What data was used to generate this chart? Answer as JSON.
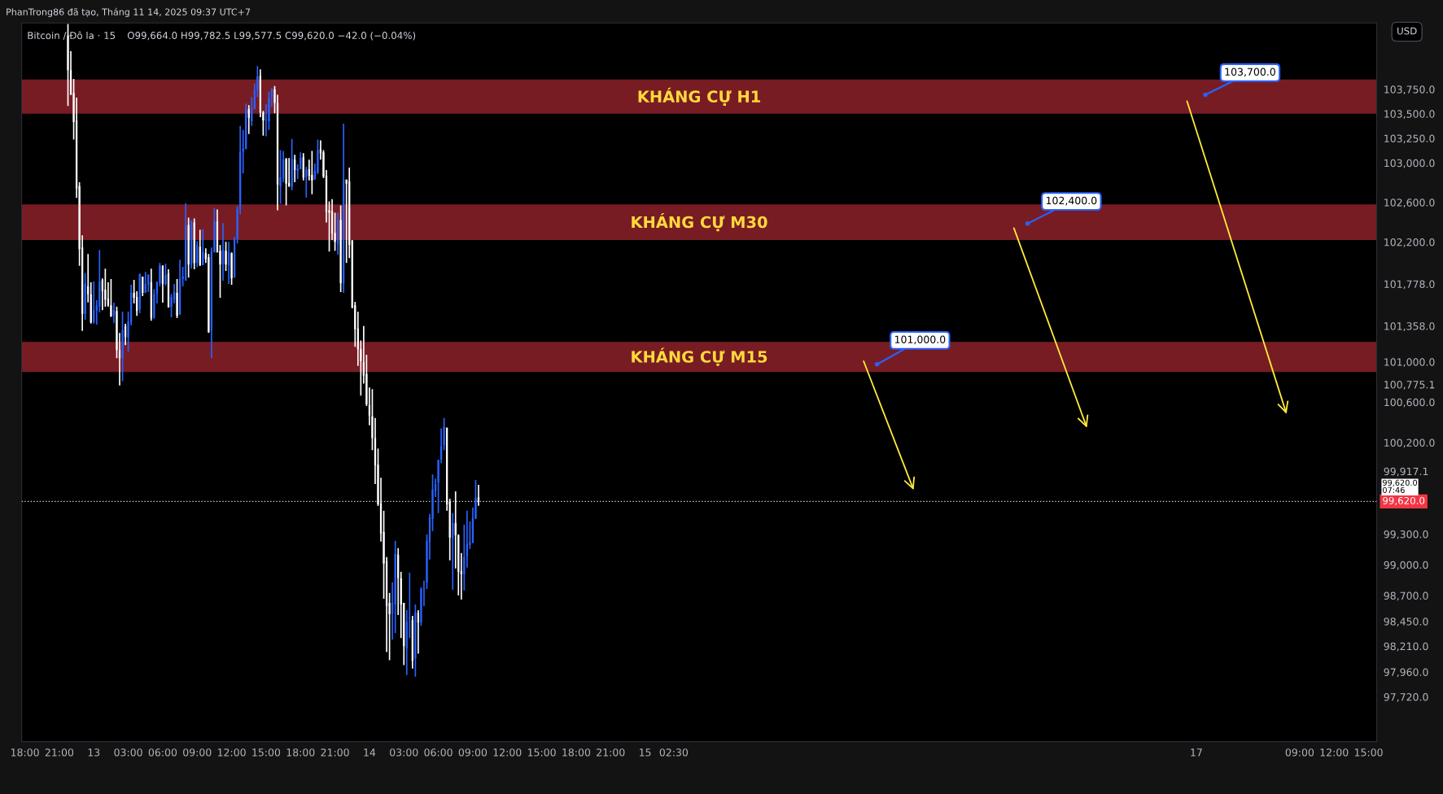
{
  "chart_data": {
    "type": "candlestick",
    "title": "Bitcoin / Đô la · 15",
    "subtitle": "O99,664.0 H99,782.5 L99,577.5 C99,620.0 −42.0 (−0.04%)",
    "annotations": [
      "PhanTrong86 đã tạo, Tháng 11 14, 2025 09:37 UTC+7",
      "USD",
      "99,620.0\n07:46",
      "101,000.0",
      "102,400.0",
      "103,700.0"
    ],
    "bands": [
      {
        "axis": "y",
        "from": 103500,
        "to": 103850,
        "label": "KHÁNG CỰ H1",
        "color": "#781c24"
      },
      {
        "axis": "y",
        "from": 102220,
        "to": 102580,
        "label": "KHÁNG CỰ M30",
        "color": "#781c24"
      },
      {
        "axis": "y",
        "from": 100900,
        "to": 101200,
        "label": "KHÁNG CỰ M15",
        "color": "#781c24"
      }
    ],
    "ref_lines": [
      {
        "axis": "y",
        "value": 99620,
        "line_style": "dotted",
        "label": "99,620.0",
        "color": "#d1d4dc"
      }
    ],
    "log": true,
    "grid": false,
    "xlim": [
      "2025-11-12T17:43",
      "2025-11-17T15:42"
    ],
    "ylim": [
      97290,
      104430
    ],
    "xticks": [
      {
        "value": "2025-11-12T18:00",
        "label": "18:00"
      },
      {
        "value": "2025-11-12T21:00",
        "label": "21:00"
      },
      {
        "value": "2025-11-13",
        "label": "13"
      },
      {
        "value": "2025-11-13T03:00",
        "label": "03:00"
      },
      {
        "value": "2025-11-13T06:00",
        "label": "06:00"
      },
      {
        "value": "2025-11-13T09:00",
        "label": "09:00"
      },
      {
        "value": "2025-11-13T12:00",
        "label": "12:00"
      },
      {
        "value": "2025-11-13T15:00",
        "label": "15:00"
      },
      {
        "value": "2025-11-13T18:00",
        "label": "18:00"
      },
      {
        "value": "2025-11-13T21:00",
        "label": "21:00"
      },
      {
        "value": "2025-11-14",
        "label": "14"
      },
      {
        "value": "2025-11-14T03:00",
        "label": "03:00"
      },
      {
        "value": "2025-11-14T06:00",
        "label": "06:00"
      },
      {
        "value": "2025-11-14T09:00",
        "label": "09:00"
      },
      {
        "value": "2025-11-14T12:00",
        "label": "12:00"
      },
      {
        "value": "2025-11-14T15:00",
        "label": "15:00"
      },
      {
        "value": "2025-11-14T18:00",
        "label": "18:00"
      },
      {
        "value": "2025-11-14T21:00",
        "label": "21:00"
      },
      {
        "value": "2025-11-15",
        "label": "15"
      },
      {
        "value": "2025-11-15T02:30",
        "label": "02:30"
      },
      {
        "value": "2025-11-17",
        "label": "17"
      },
      {
        "value": "2025-11-17T09:00",
        "label": "09:00"
      },
      {
        "value": "2025-11-17T12:00",
        "label": "12:00"
      },
      {
        "value": "2025-11-17T15:00",
        "label": "15:00"
      }
    ],
    "yticks": [
      {
        "value": 101778,
        "label": "101,778.0"
      },
      {
        "value": 101358,
        "label": "101,358.0"
      },
      {
        "value": 100775.1,
        "label": "100,775.1"
      },
      {
        "value": 99917.1,
        "label": "99,917.1"
      },
      {
        "value": 97720,
        "label": "97,720.0"
      },
      {
        "value": 97960,
        "label": "97,960.0"
      },
      {
        "value": 98210,
        "label": "98,210.0"
      },
      {
        "value": 98450,
        "label": "98,450.0"
      },
      {
        "value": 98700,
        "label": "98,700.0"
      },
      {
        "value": 99000,
        "label": "99,000.0"
      },
      {
        "value": 99300,
        "label": "99,300.0"
      },
      {
        "value": 100200,
        "label": "100,200.0"
      },
      {
        "value": 100600,
        "label": "100,600.0"
      },
      {
        "value": 101000,
        "label": "101,000.0"
      },
      {
        "value": 102200,
        "label": "102,200.0"
      },
      {
        "value": 102600,
        "label": "102,600.0"
      },
      {
        "value": 103000,
        "label": "103,000.0"
      },
      {
        "value": 103250,
        "label": "103,250.0"
      },
      {
        "value": 103500,
        "label": "103,500.0"
      },
      {
        "value": 103750,
        "label": "103,750.0"
      }
    ],
    "x": [
      "2025-11-12T21:45",
      "2025-11-12T22:00",
      "2025-11-12T22:15",
      "2025-11-12T22:30",
      "2025-11-12T22:45",
      "2025-11-12T23:00",
      "2025-11-12T23:15",
      "2025-11-12T23:30",
      "2025-11-12T23:45",
      "2025-11-13T00:00",
      "2025-11-13T00:15",
      "2025-11-13T00:30",
      "2025-11-13T00:45",
      "2025-11-13T01:00",
      "2025-11-13T01:15",
      "2025-11-13T01:30",
      "2025-11-13T01:45",
      "2025-11-13T02:00",
      "2025-11-13T02:15",
      "2025-11-13T02:30",
      "2025-11-13T02:45",
      "2025-11-13T03:00",
      "2025-11-13T03:15",
      "2025-11-13T03:30",
      "2025-11-13T03:45",
      "2025-11-13T04:00",
      "2025-11-13T04:15",
      "2025-11-13T04:30",
      "2025-11-13T04:45",
      "2025-11-13T05:00",
      "2025-11-13T05:15",
      "2025-11-13T05:30",
      "2025-11-13T05:45",
      "2025-11-13T06:00",
      "2025-11-13T06:15",
      "2025-11-13T06:30",
      "2025-11-13T06:45",
      "2025-11-13T07:00",
      "2025-11-13T07:15",
      "2025-11-13T07:30",
      "2025-11-13T07:45",
      "2025-11-13T08:00",
      "2025-11-13T08:15",
      "2025-11-13T08:30",
      "2025-11-13T08:45",
      "2025-11-13T09:00",
      "2025-11-13T09:15",
      "2025-11-13T09:30",
      "2025-11-13T09:45",
      "2025-11-13T10:00",
      "2025-11-13T10:15",
      "2025-11-13T10:30",
      "2025-11-13T10:45",
      "2025-11-13T11:00",
      "2025-11-13T11:15",
      "2025-11-13T11:30",
      "2025-11-13T11:45",
      "2025-11-13T12:00",
      "2025-11-13T12:15",
      "2025-11-13T12:30",
      "2025-11-13T12:45",
      "2025-11-13T13:00",
      "2025-11-13T13:15",
      "2025-11-13T13:30",
      "2025-11-13T13:45",
      "2025-11-13T14:00",
      "2025-11-13T14:15",
      "2025-11-13T14:30",
      "2025-11-13T14:45",
      "2025-11-13T15:00",
      "2025-11-13T15:15",
      "2025-11-13T15:30",
      "2025-11-13T15:45",
      "2025-11-13T16:00",
      "2025-11-13T16:15",
      "2025-11-13T16:30",
      "2025-11-13T16:45",
      "2025-11-13T17:00",
      "2025-11-13T17:15",
      "2025-11-13T17:30",
      "2025-11-13T17:45",
      "2025-11-13T18:00",
      "2025-11-13T18:15",
      "2025-11-13T18:30",
      "2025-11-13T18:45",
      "2025-11-13T19:00",
      "2025-11-13T19:15",
      "2025-11-13T19:30",
      "2025-11-13T19:45",
      "2025-11-13T20:00",
      "2025-11-13T20:15",
      "2025-11-13T20:30",
      "2025-11-13T20:45",
      "2025-11-13T21:00",
      "2025-11-13T21:15",
      "2025-11-13T21:30",
      "2025-11-13T21:45",
      "2025-11-13T22:00",
      "2025-11-13T22:15",
      "2025-11-13T22:30",
      "2025-11-13T22:45",
      "2025-11-13T23:00",
      "2025-11-13T23:15",
      "2025-11-13T23:30",
      "2025-11-13T23:45",
      "2025-11-14T00:00",
      "2025-11-14T00:15",
      "2025-11-14T00:30",
      "2025-11-14T00:45",
      "2025-11-14T01:00",
      "2025-11-14T01:15",
      "2025-11-14T01:30",
      "2025-11-14T01:45",
      "2025-11-14T02:00",
      "2025-11-14T02:15",
      "2025-11-14T02:30",
      "2025-11-14T02:45",
      "2025-11-14T03:00",
      "2025-11-14T03:15",
      "2025-11-14T03:30",
      "2025-11-14T03:45",
      "2025-11-14T04:00",
      "2025-11-14T04:15",
      "2025-11-14T04:30",
      "2025-11-14T04:45",
      "2025-11-14T05:00",
      "2025-11-14T05:15",
      "2025-11-14T05:30",
      "2025-11-14T05:45",
      "2025-11-14T06:00",
      "2025-11-14T06:15",
      "2025-11-14T06:30",
      "2025-11-14T06:45",
      "2025-11-14T07:00",
      "2025-11-14T07:15",
      "2025-11-14T07:30",
      "2025-11-14T07:45",
      "2025-11-14T08:00",
      "2025-11-14T08:15",
      "2025-11-14T08:30",
      "2025-11-14T08:45",
      "2025-11-14T09:00",
      "2025-11-14T09:15",
      "2025-11-14T09:30"
    ],
    "ohlc": [
      [
        104300,
        104420,
        103580,
        103946
      ],
      [
        103946,
        104142,
        103694,
        103694
      ],
      [
        103713,
        103857,
        103237,
        103417
      ],
      [
        103433,
        103666,
        102645,
        102740
      ],
      [
        102765,
        102805,
        101960,
        102129
      ],
      [
        102145,
        102267,
        101308,
        101479
      ],
      [
        101479,
        101887,
        101420,
        101778
      ],
      [
        101754,
        102080,
        101594,
        101675
      ],
      [
        101672,
        101795,
        101381,
        101395
      ],
      [
        101395,
        101803,
        101381,
        101517
      ],
      [
        101512,
        101615,
        101371,
        101566
      ],
      [
        101553,
        102121,
        101493,
        101803
      ],
      [
        101819,
        101835,
        101517,
        101705
      ],
      [
        101721,
        101933,
        101550,
        101623
      ],
      [
        101632,
        101795,
        101550,
        101566
      ],
      [
        101566,
        101827,
        101452,
        101452
      ],
      [
        101460,
        101591,
        101387,
        101517
      ],
      [
        101509,
        101550,
        101037,
        101118
      ],
      [
        101118,
        101289,
        100767,
        101037
      ],
      [
        101037,
        101501,
        100808,
        101314
      ],
      [
        101354,
        101379,
        101167,
        101248
      ],
      [
        101240,
        101501,
        101102,
        101403
      ],
      [
        101395,
        101770,
        101363,
        101689
      ],
      [
        101689,
        101819,
        101583,
        101640
      ],
      [
        101648,
        101705,
        101460,
        101509
      ],
      [
        101525,
        101884,
        101485,
        101876
      ],
      [
        101852,
        101852,
        101656,
        101689
      ],
      [
        101689,
        101900,
        101689,
        101778
      ],
      [
        101770,
        101876,
        101697,
        101868
      ],
      [
        101795,
        101933,
        101411,
        101436
      ],
      [
        101444,
        101729,
        101428,
        101680
      ],
      [
        101680,
        101803,
        101583,
        101795
      ],
      [
        101787,
        101990,
        101754,
        101966
      ],
      [
        101958,
        101966,
        101591,
        101778
      ],
      [
        101778,
        101982,
        101762,
        101868
      ],
      [
        101884,
        101925,
        101542,
        101542
      ],
      [
        101550,
        101680,
        101444,
        101648
      ],
      [
        101623,
        101778,
        101583,
        101697
      ],
      [
        101689,
        101827,
        101436,
        101460
      ],
      [
        101477,
        102023,
        101468,
        101827
      ],
      [
        101827,
        101950,
        101754,
        101852
      ],
      [
        101811,
        102593,
        101811,
        102365
      ],
      [
        102373,
        102447,
        101843,
        101974
      ],
      [
        101974,
        102422,
        101933,
        102406
      ],
      [
        102398,
        102438,
        101925,
        101990
      ],
      [
        101990,
        102210,
        101949,
        102170
      ],
      [
        102153,
        102324,
        101958,
        101966
      ],
      [
        101966,
        102332,
        101966,
        102104
      ],
      [
        102088,
        102137,
        101990,
        102031
      ],
      [
        102047,
        102080,
        101289,
        101297
      ],
      [
        101314,
        102145,
        101037,
        102104
      ],
      [
        102096,
        102544,
        102096,
        102414
      ],
      [
        102406,
        102528,
        102096,
        102096
      ],
      [
        102112,
        102170,
        101640,
        101974
      ],
      [
        101982,
        102390,
        101811,
        102121
      ],
      [
        102112,
        102202,
        101909,
        101974
      ],
      [
        101966,
        102202,
        101778,
        102096
      ],
      [
        102088,
        102096,
        101770,
        101835
      ],
      [
        101843,
        102251,
        101843,
        102235
      ],
      [
        102235,
        102561,
        102186,
        102536
      ],
      [
        102536,
        103376,
        102479,
        103115
      ],
      [
        103115,
        103335,
        102895,
        103148
      ],
      [
        103140,
        103604,
        103140,
        103539
      ],
      [
        103547,
        103588,
        103294,
        103457
      ],
      [
        103425,
        103669,
        103376,
        103563
      ],
      [
        103547,
        103808,
        103547,
        103743
      ],
      [
        103743,
        103987,
        103669,
        103881
      ],
      [
        103889,
        103955,
        103465,
        103514
      ],
      [
        103514,
        103531,
        103278,
        103433
      ],
      [
        103433,
        103596,
        103270,
        103441
      ],
      [
        103425,
        103726,
        103335,
        103661
      ],
      [
        103669,
        103759,
        103571,
        103759
      ],
      [
        103751,
        103783,
        103506,
        103612
      ],
      [
        103612,
        103694,
        102520,
        102781
      ],
      [
        102765,
        103131,
        102585,
        102854
      ],
      [
        102846,
        103123,
        102805,
        103033
      ],
      [
        103041,
        103050,
        102569,
        102789
      ],
      [
        102797,
        103050,
        102756,
        102765
      ],
      [
        102756,
        103245,
        102724,
        103042
      ],
      [
        103034,
        103082,
        102805,
        102928
      ],
      [
        102920,
        102985,
        102838,
        102944
      ],
      [
        102936,
        103107,
        102936,
        103050
      ],
      [
        103058,
        103099,
        102822,
        102854
      ],
      [
        102854,
        102960,
        102650,
        102936
      ],
      [
        102936,
        103034,
        102822,
        102871
      ],
      [
        102879,
        103123,
        102683,
        102822
      ],
      [
        102830,
        102993,
        102830,
        102920
      ],
      [
        102903,
        103237,
        102887,
        103131
      ],
      [
        103139,
        103229,
        103034,
        103099
      ],
      [
        103107,
        103131,
        102846,
        102862
      ],
      [
        102871,
        102928,
        102398,
        102504
      ],
      [
        102520,
        102610,
        102104,
        102496
      ],
      [
        102512,
        102634,
        102218,
        102284
      ],
      [
        102292,
        102496,
        102112,
        102202
      ],
      [
        102178,
        102496,
        102072,
        102422
      ],
      [
        102422,
        102569,
        101697,
        101786
      ],
      [
        101786,
        103400,
        101689,
        102822
      ],
      [
        102830,
        102830,
        101990,
        102789
      ],
      [
        102814,
        102952,
        102039,
        102170
      ],
      [
        102218,
        102218,
        101534,
        101542
      ],
      [
        101566,
        101599,
        101150,
        101325
      ],
      [
        101333,
        101500,
        100960,
        101127
      ],
      [
        101127,
        101214,
        100665,
        101007
      ],
      [
        101000,
        101357,
        100785,
        100864
      ],
      [
        100880,
        101071,
        100562,
        100578
      ],
      [
        100570,
        100745,
        100371,
        100467
      ],
      [
        100459,
        100729,
        100125,
        100244
      ],
      [
        100244,
        100443,
        99791,
        99974
      ],
      [
        99982,
        100141,
        99576,
        99592
      ],
      [
        99600,
        99854,
        99226,
        99306
      ],
      [
        99322,
        99529,
        98670,
        99012
      ],
      [
        99036,
        99076,
        98153,
        98598
      ],
      [
        98630,
        98726,
        98074,
        98519
      ],
      [
        98527,
        98829,
        98272,
        98630
      ],
      [
        98614,
        99234,
        98336,
        99107
      ],
      [
        99099,
        99163,
        98511,
        98869
      ],
      [
        98869,
        98932,
        98288,
        98614
      ],
      [
        98630,
        98630,
        98026,
        98209
      ],
      [
        98185,
        98559,
        97931,
        98447
      ],
      [
        98479,
        98924,
        98288,
        98487
      ],
      [
        98463,
        98503,
        97994,
        98066
      ],
      [
        98090,
        98614,
        97915,
        98535
      ],
      [
        98535,
        98559,
        98137,
        98439
      ],
      [
        98439,
        98781,
        98407,
        98765
      ],
      [
        98765,
        98845,
        98598,
        98773
      ],
      [
        98829,
        99298,
        98765,
        99234
      ],
      [
        99226,
        99497,
        99052,
        99465
      ],
      [
        99449,
        99886,
        99330,
        99735
      ],
      [
        99727,
        99846,
        99664,
        99791
      ],
      [
        99807,
        100030,
        99505,
        100030
      ],
      [
        100030,
        100340,
        99998,
        100165
      ],
      [
        100173,
        100443,
        100125,
        100355
      ],
      [
        100347,
        100347,
        99529,
        99592
      ],
      [
        99616,
        99648,
        99044,
        99266
      ],
      [
        99258,
        99505,
        98757,
        99409
      ],
      [
        99409,
        99719,
        98964,
        99290
      ],
      [
        99290,
        99298,
        98702,
        98932
      ],
      [
        98940,
        99115,
        98662,
        98908
      ],
      [
        98908,
        99393,
        98750,
        99076
      ],
      [
        99083,
        99529,
        98972,
        99203
      ],
      [
        99195,
        99425,
        99155,
        99219
      ],
      [
        99219,
        99561,
        99211,
        99457
      ],
      [
        99449,
        99831,
        99449,
        99656
      ],
      [
        99664,
        99782.5,
        99577.5,
        99620
      ]
    ]
  }
}
